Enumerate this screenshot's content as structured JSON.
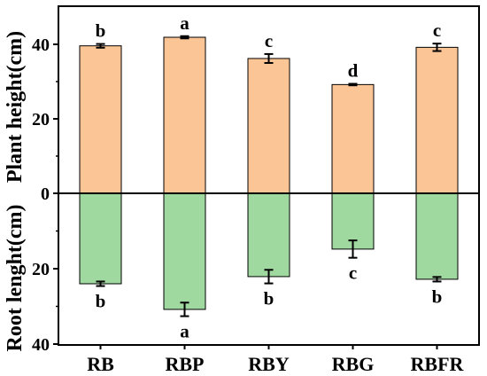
{
  "chart_data": {
    "type": "bar",
    "categories": [
      "RB",
      "RBP",
      "RBY",
      "RBG",
      "RBFR"
    ],
    "series": [
      {
        "ylabel": "Plant height(cm)",
        "color": "#fbc596",
        "values": [
          39.6,
          41.9,
          36.2,
          29.2,
          39.2
        ],
        "errors": [
          0.5,
          0.3,
          1.2,
          0.2,
          1.0
        ],
        "letters": [
          "b",
          "a",
          "c",
          "d",
          "c"
        ]
      },
      {
        "ylabel": "Root lenght(cm)",
        "color": "#a0d9a0",
        "values": [
          24.0,
          30.8,
          22.1,
          14.8,
          22.8
        ],
        "errors": [
          0.6,
          1.8,
          1.8,
          2.3,
          0.6
        ],
        "letters": [
          "b",
          "a",
          "b",
          "c",
          "b"
        ]
      }
    ],
    "yticks_top": [
      "40",
      "20"
    ],
    "ytick_zero": "0",
    "yticks_bottom": [
      "20",
      "40"
    ],
    "ylim_top": [
      0,
      48
    ],
    "ylim_bottom": [
      0,
      40
    ]
  }
}
